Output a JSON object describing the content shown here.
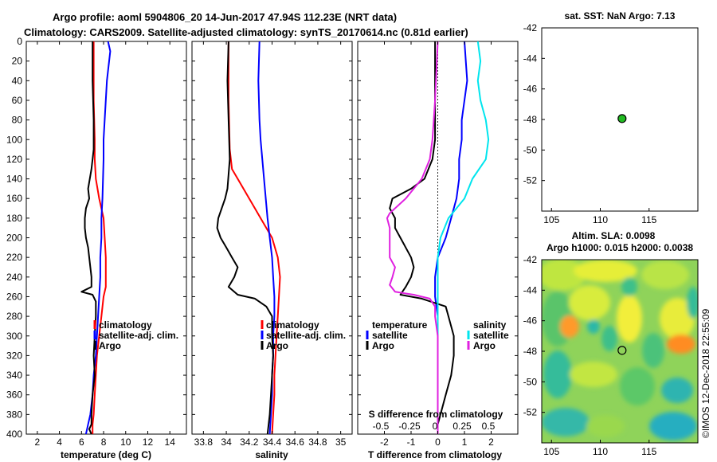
{
  "title": {
    "line1": "Argo profile: aoml 5904806_20 14-Jun-2017 47.94S 112.23E (NRT data)",
    "line2": "Climatology: CARS2009. Satellite-adjusted climatology: synTS_20170614.nc (0.81d earlier)"
  },
  "watermark": "©IMOS 12-Dec-2018 22:55:09",
  "colors": {
    "climatology": "#ff0000",
    "satellite": "#0000ff",
    "argo": "#000000",
    "sat_salinity": "#00e5ee",
    "argo_salinity": "#e020e0",
    "marker": "#22bb22"
  },
  "depth_ticks": [
    0,
    20,
    40,
    60,
    80,
    100,
    120,
    140,
    160,
    180,
    200,
    220,
    240,
    260,
    280,
    300,
    320,
    340,
    360,
    380,
    400
  ],
  "chart_data": [
    {
      "id": "temperature",
      "type": "line",
      "xlabel": "temperature (deg C)",
      "xlim": [
        1,
        15.5
      ],
      "xticks": [
        2,
        4,
        6,
        8,
        10,
        12,
        14
      ],
      "xtick_labels": [
        "2",
        "4",
        "6",
        "8",
        "10",
        "12",
        "14"
      ],
      "ylim": [
        0,
        400
      ],
      "legend": [
        "climatology",
        "satellite-adj. clim.",
        "Argo"
      ],
      "series": [
        {
          "name": "climatology",
          "color": "#ff0000",
          "x": [
            7.1,
            7.1,
            7.2,
            7.2,
            7.3,
            7.6,
            8.0,
            8.1,
            8.2,
            8.2,
            8.2,
            8.0,
            7.8,
            7.6,
            7.4,
            7.3,
            7.2,
            7.1,
            7.0,
            7.0
          ],
          "depth": [
            0,
            60,
            100,
            120,
            140,
            160,
            180,
            200,
            220,
            240,
            250,
            260,
            280,
            300,
            320,
            340,
            360,
            380,
            390,
            400
          ]
        },
        {
          "name": "satellite-adj. clim.",
          "color": "#0000ff",
          "x": [
            8.4,
            8.6,
            8.3,
            8.1,
            8.0,
            8.0,
            7.9,
            7.8,
            7.8,
            7.7,
            7.7,
            7.6,
            7.5,
            7.4,
            7.3,
            7.1,
            7.0,
            6.8,
            6.6,
            6.4
          ],
          "depth": [
            0,
            10,
            40,
            80,
            100,
            120,
            160,
            180,
            200,
            220,
            240,
            260,
            280,
            300,
            320,
            340,
            360,
            380,
            390,
            400
          ]
        },
        {
          "name": "Argo",
          "color": "#000000",
          "x": [
            7.0,
            7.0,
            7.1,
            7.1,
            6.9,
            6.6,
            6.7,
            6.4,
            6.3,
            6.3,
            6.4,
            6.6,
            6.7,
            6.8,
            6.9,
            6.9,
            6.0,
            7.0,
            7.3,
            7.3,
            7.2,
            7.1,
            7.2,
            7.0,
            6.9,
            6.9,
            6.7,
            6.9
          ],
          "depth": [
            0,
            40,
            80,
            110,
            130,
            150,
            160,
            170,
            180,
            190,
            200,
            210,
            220,
            230,
            240,
            250,
            255,
            258,
            265,
            280,
            300,
            320,
            340,
            360,
            380,
            390,
            395,
            400
          ]
        }
      ]
    },
    {
      "id": "salinity",
      "type": "line",
      "xlabel": "salinity",
      "xlim": [
        33.7,
        35.1
      ],
      "xticks": [
        33.8,
        34.0,
        34.2,
        34.4,
        34.6,
        34.8,
        35.0
      ],
      "xtick_labels": [
        "33.8",
        "34",
        "34.2",
        "34.4",
        "34.6",
        "34.8",
        "35"
      ],
      "ylim": [
        0,
        400
      ],
      "legend": [
        "climatology",
        "satellite-adj. clim.",
        "Argo"
      ],
      "series": [
        {
          "name": "climatology",
          "color": "#ff0000",
          "x": [
            34.02,
            34.02,
            34.03,
            34.05,
            34.1,
            34.2,
            34.3,
            34.4,
            34.45,
            34.47,
            34.46,
            34.45,
            34.44,
            34.43,
            34.42,
            34.42,
            34.41,
            34.4
          ],
          "depth": [
            0,
            60,
            110,
            130,
            140,
            160,
            180,
            200,
            220,
            240,
            260,
            280,
            300,
            320,
            340,
            360,
            380,
            400
          ]
        },
        {
          "name": "satellite-adj. clim.",
          "color": "#0000ff",
          "x": [
            34.29,
            34.28,
            34.29,
            34.3,
            34.33,
            34.36,
            34.38,
            34.4,
            34.41,
            34.42,
            34.42,
            34.41,
            34.41,
            34.4,
            34.4,
            34.39,
            34.38
          ],
          "depth": [
            0,
            40,
            80,
            100,
            140,
            180,
            200,
            220,
            240,
            260,
            280,
            300,
            320,
            340,
            360,
            380,
            400
          ]
        },
        {
          "name": "Argo",
          "color": "#000000",
          "x": [
            34.02,
            34.01,
            34.02,
            34.03,
            34.01,
            33.99,
            33.96,
            33.93,
            33.92,
            33.95,
            34.0,
            34.05,
            34.1,
            34.07,
            34.02,
            34.1,
            34.25,
            34.35,
            34.4,
            34.4,
            34.41,
            34.4,
            34.39,
            34.38,
            34.37,
            34.36
          ],
          "depth": [
            0,
            40,
            80,
            120,
            150,
            160,
            170,
            180,
            190,
            200,
            210,
            220,
            230,
            240,
            250,
            258,
            262,
            270,
            280,
            300,
            320,
            340,
            360,
            380,
            390,
            400
          ]
        }
      ]
    },
    {
      "id": "difference",
      "type": "line",
      "xlabel": "T difference from climatology",
      "xlabel_top": "S difference from climatology",
      "xlim": [
        -3,
        3
      ],
      "xticks": [
        -2,
        -1,
        0,
        1,
        2
      ],
      "xtick_labels": [
        "-2",
        "-1",
        "0",
        "1",
        "2"
      ],
      "top_xtick_labels": [
        "-0.5",
        "-0.25",
        "0",
        "0.25",
        "0.5"
      ],
      "ylim": [
        0,
        400
      ],
      "legend_temperature_title": "temperature",
      "legend_salinity_title": "salinity",
      "legend_temperature": [
        "satellite",
        "Argo"
      ],
      "legend_salinity": [
        "satellite",
        "Argo"
      ],
      "series": [
        {
          "name": "temperature satellite",
          "color": "#0000ff",
          "x": [
            1.0,
            1.1,
            0.9,
            0.9,
            0.8,
            0.8,
            0.7,
            0.5,
            0.3,
            0.0,
            -0.1,
            -0.1,
            0.0,
            0.0,
            0.0,
            0.0,
            0.0,
            0.0
          ],
          "depth": [
            0,
            40,
            80,
            100,
            120,
            140,
            160,
            180,
            200,
            220,
            240,
            260,
            280,
            300,
            320,
            340,
            360,
            400
          ]
        },
        {
          "name": "temperature Argo",
          "color": "#000000",
          "x": [
            -0.1,
            -0.1,
            -0.1,
            -0.2,
            -0.5,
            -1.0,
            -1.7,
            -1.8,
            -1.6,
            -1.6,
            -1.4,
            -1.2,
            -1.0,
            -0.9,
            -1.0,
            -1.2,
            -1.3,
            -1.4,
            -0.6,
            0.3,
            0.4,
            0.6,
            0.6,
            0.5,
            0.3,
            0.1,
            0.0,
            0.0,
            0.0
          ],
          "depth": [
            0,
            60,
            100,
            120,
            140,
            150,
            160,
            170,
            180,
            190,
            200,
            210,
            220,
            230,
            240,
            250,
            254,
            258,
            262,
            270,
            280,
            300,
            320,
            340,
            360,
            380,
            390,
            395,
            400
          ]
        },
        {
          "name": "salinity satellite",
          "color": "#00e5ee",
          "x": [
            1.5,
            1.6,
            1.5,
            1.6,
            1.8,
            1.9,
            1.8,
            1.3,
            1.0,
            0.4,
            0.1,
            0.0,
            0.0,
            0.0,
            0.0,
            0.0,
            0.0
          ],
          "depth": [
            0,
            20,
            40,
            60,
            80,
            100,
            120,
            140,
            160,
            180,
            200,
            220,
            240,
            260,
            300,
            360,
            400
          ]
        },
        {
          "name": "salinity Argo",
          "color": "#e020e0",
          "x": [
            0.0,
            -0.1,
            -0.2,
            -0.3,
            -0.6,
            -1.2,
            -1.8,
            -1.9,
            -1.8,
            -1.8,
            -1.8,
            -1.8,
            -1.6,
            -1.7,
            -1.8,
            -1.6,
            -0.9,
            -0.3,
            -0.1,
            -0.1,
            0.0,
            0.0,
            0.0,
            0.0,
            0.0,
            0.0
          ],
          "depth": [
            0,
            60,
            100,
            120,
            140,
            160,
            175,
            180,
            190,
            200,
            210,
            220,
            230,
            240,
            248,
            255,
            258,
            262,
            270,
            280,
            300,
            320,
            340,
            360,
            380,
            400
          ]
        }
      ]
    },
    {
      "id": "sst_map",
      "type": "scatter",
      "title": "sat. SST: NaN Argo: 7.13",
      "xlim": [
        104,
        120
      ],
      "ylim": [
        -54,
        -42
      ],
      "xticks": [
        105,
        110,
        115
      ],
      "yticks": [
        -42,
        -44,
        -46,
        -48,
        -50,
        -52
      ],
      "points": [
        {
          "lon": 112.23,
          "lat": -47.94
        }
      ]
    },
    {
      "id": "sla_map",
      "type": "heatmap",
      "title": "Altim. SLA: 0.0098",
      "subtitle": "Argo h1000: 0.015 h2000: 0.0038",
      "xlim": [
        104,
        120
      ],
      "ylim": [
        -54,
        -42
      ],
      "xticks": [
        105,
        110,
        115
      ],
      "yticks": [
        -42,
        -44,
        -46,
        -48,
        -50,
        -52
      ],
      "points": [
        {
          "lon": 112.23,
          "lat": -47.94
        }
      ]
    }
  ]
}
